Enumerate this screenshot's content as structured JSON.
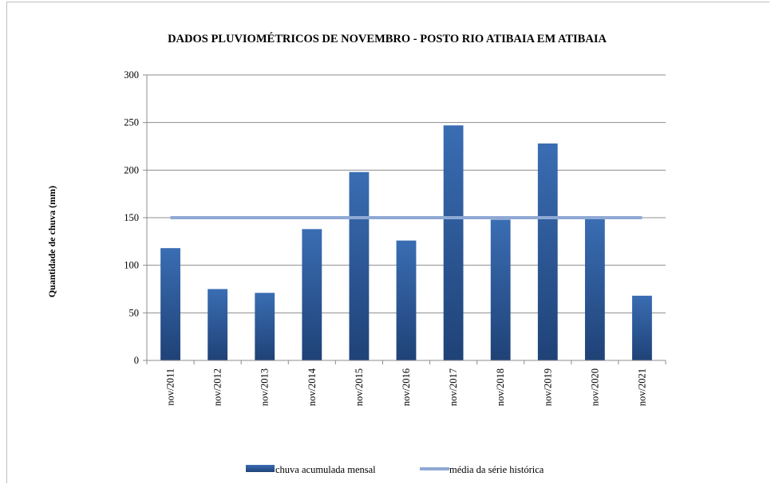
{
  "chart_data": {
    "type": "bar",
    "title": "DADOS PLUVIOMÉTRICOS DE NOVEMBRO - POSTO RIO ATIBAIA EM ATIBAIA",
    "ylabel": "Quantidade de chuva (mm)",
    "xlabel": "",
    "ylim": [
      0,
      300
    ],
    "yticks": [
      0,
      50,
      100,
      150,
      200,
      250,
      300
    ],
    "grid": true,
    "legend_position": "bottom",
    "categories": [
      "nov/2011",
      "nov/2012",
      "nov/2013",
      "nov/2014",
      "nov/2015",
      "nov/2016",
      "nov/2017",
      "nov/2018",
      "nov/2019",
      "nov/2020",
      "nov/2021"
    ],
    "series": [
      {
        "name": "chuva acumulada mensal",
        "type": "bar",
        "color": "#2f5f9e",
        "values": [
          118,
          75,
          71,
          138,
          198,
          126,
          247,
          148,
          228,
          149,
          68
        ]
      },
      {
        "name": "média da série histórica",
        "type": "line",
        "color": "#8fa9d4",
        "values": [
          150,
          150,
          150,
          150,
          150,
          150,
          150,
          150,
          150,
          150,
          150
        ]
      }
    ]
  }
}
